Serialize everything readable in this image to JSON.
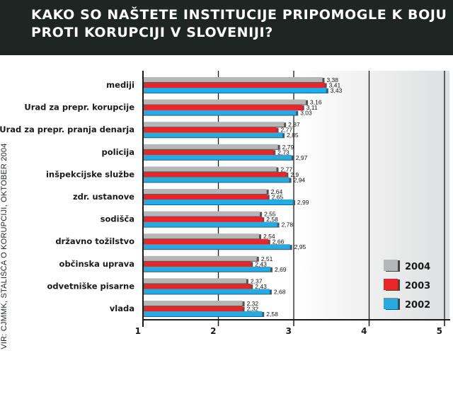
{
  "title": "KAKO SO NAŠTETE INSTITUCIJE PRIPOMOGLE K BOJU PROTI KORUPCIJI V SLOVENIJI?",
  "source": "VIR: CJMMK, STALIŠČA O KORUPCIJI, OKTOBER 2004",
  "colors": {
    "2004": "#b4b6b8",
    "2003": "#e8262a",
    "2002": "#27aae1",
    "header": "#1f2522"
  },
  "chart_data": {
    "type": "bar",
    "orientation": "horizontal",
    "title": "KAKO SO NAŠTETE INSTITUCIJE PRIPOMOGLE K BOJU PROTI KORUPCIJI V SLOVENIJI?",
    "categories": [
      "mediji",
      "Urad za prepr. korupcije",
      "Urad za prepr. pranja denarja",
      "policija",
      "inšpekcijske službe",
      "zdr. ustanove",
      "sodišča",
      "državno tožilstvo",
      "občinska uprava",
      "odvetniške pisarne",
      "vlada"
    ],
    "series": [
      {
        "name": "2004",
        "values": [
          3.38,
          3.16,
          2.87,
          2.79,
          2.77,
          2.64,
          2.55,
          2.54,
          2.51,
          2.37,
          2.32
        ],
        "labels": [
          "3,38",
          "3,16",
          "2,87",
          "2,79",
          "2,77",
          "2,64",
          "2,55",
          "2,54",
          "2,51",
          "2,37",
          "2,32"
        ]
      },
      {
        "name": "2003",
        "values": [
          3.41,
          3.11,
          2.77,
          2.73,
          2.9,
          2.65,
          2.58,
          2.66,
          2.43,
          2.43,
          2.32
        ],
        "labels": [
          "3,41",
          "3,11",
          "2,77",
          "2,73",
          "2,9",
          "2,65",
          "2,58",
          "2,66",
          "2,43",
          "2,43",
          "2,32"
        ]
      },
      {
        "name": "2002",
        "values": [
          3.43,
          3.03,
          2.85,
          2.97,
          2.94,
          2.99,
          2.78,
          2.95,
          2.69,
          2.68,
          2.58
        ],
        "labels": [
          "3,43",
          "3,03",
          "2,85",
          "2,97",
          "2,94",
          "2,99",
          "2,78",
          "2,95",
          "2,69",
          "2,68",
          "2,58"
        ]
      }
    ],
    "xlim": [
      1,
      5
    ],
    "xticks": [
      "1",
      "2",
      "3",
      "4",
      "5"
    ],
    "grid": true,
    "legend_position": "bottom-right"
  }
}
